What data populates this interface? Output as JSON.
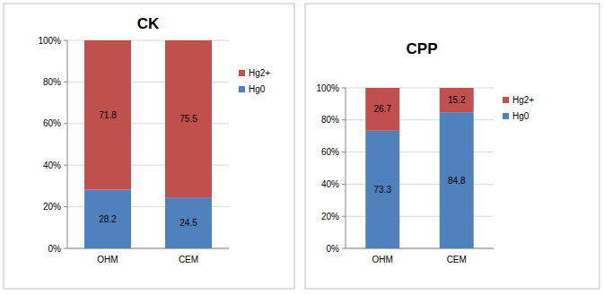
{
  "chart_data": [
    {
      "type": "bar",
      "title": "CK",
      "stacked": true,
      "data_labels": true,
      "grid": true,
      "legend": "right",
      "categories": [
        "OHM",
        "CEM"
      ],
      "series": [
        {
          "name": "Hg0",
          "color": "#4f81bd",
          "values": [
            28.2,
            24.5
          ]
        },
        {
          "name": "Hg2+",
          "color": "#c0504d",
          "values": [
            71.8,
            75.5
          ]
        }
      ],
      "ylim": [
        0,
        100
      ],
      "yticks": [
        {
          "value": 0,
          "label": "0%"
        },
        {
          "value": 20,
          "label": "20%"
        },
        {
          "value": 40,
          "label": "40%"
        },
        {
          "value": 60,
          "label": "60%"
        },
        {
          "value": 80,
          "label": "80%"
        },
        {
          "value": 100,
          "label": "100%"
        }
      ]
    },
    {
      "type": "bar",
      "title": "CPP",
      "stacked": true,
      "data_labels": true,
      "grid": true,
      "legend": "right",
      "categories": [
        "OHM",
        "CEM"
      ],
      "series": [
        {
          "name": "Hg0",
          "color": "#4f81bd",
          "values": [
            73.3,
            84.8
          ]
        },
        {
          "name": "Hg2+",
          "color": "#c0504d",
          "values": [
            26.7,
            15.2
          ]
        }
      ],
      "ylim": [
        0,
        100
      ],
      "yticks": [
        {
          "value": 0,
          "label": "0%"
        },
        {
          "value": 20,
          "label": "20%"
        },
        {
          "value": 40,
          "label": "40%"
        },
        {
          "value": 60,
          "label": "60%"
        },
        {
          "value": 80,
          "label": "80%"
        },
        {
          "value": 100,
          "label": "100%"
        }
      ]
    }
  ]
}
